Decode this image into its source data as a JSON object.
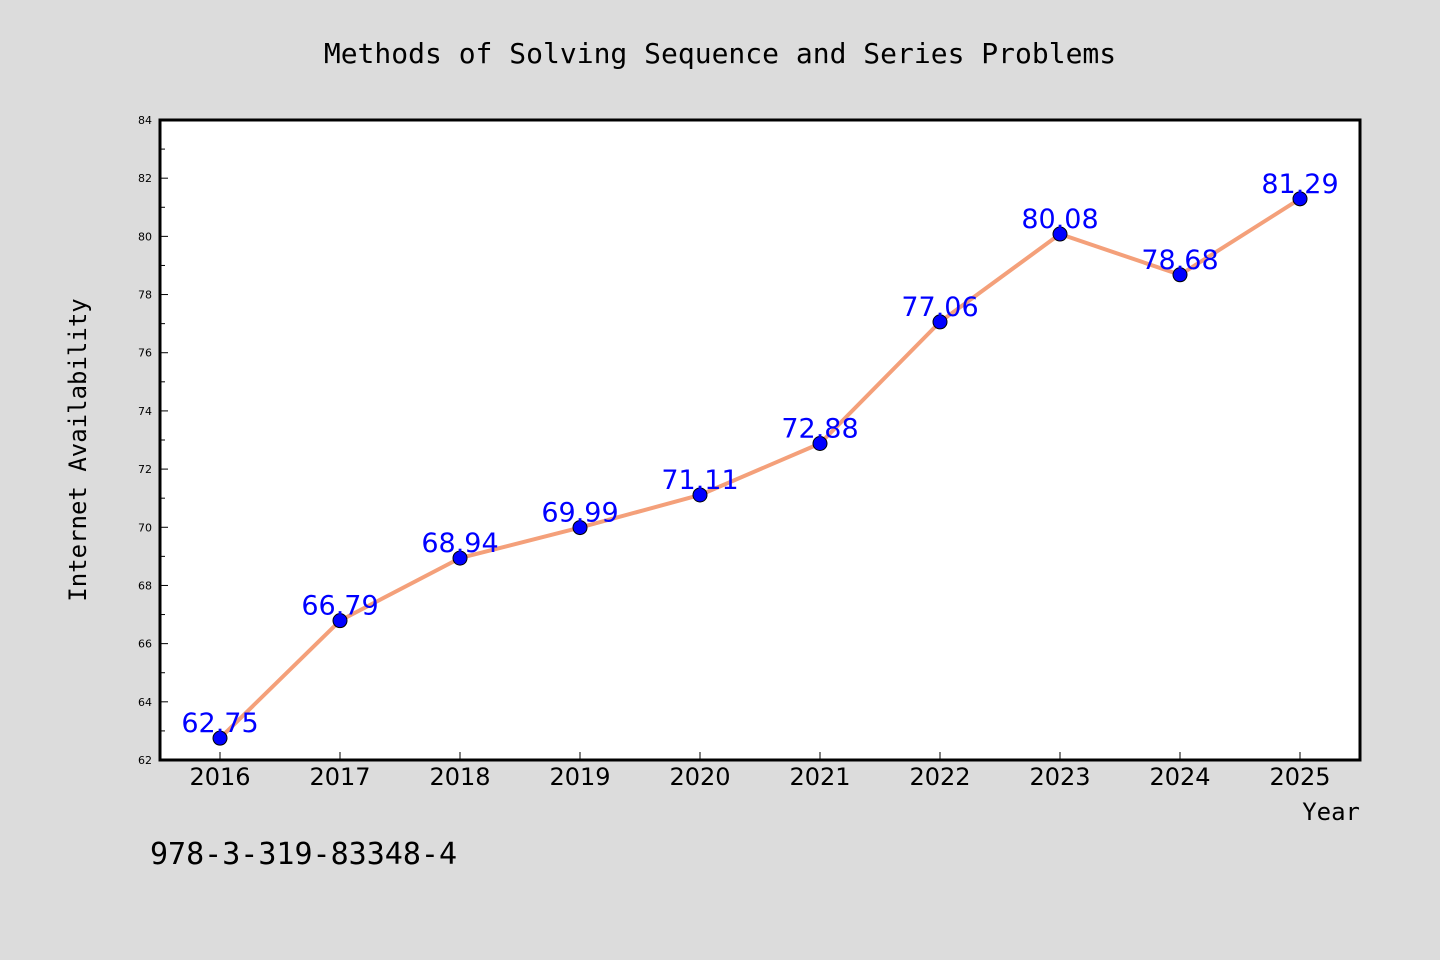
{
  "chart_data": {
    "type": "line",
    "title": "Methods of Solving Sequence and Series Problems",
    "xlabel": "Year",
    "ylabel": "Internet Availability",
    "categories": [
      "2016",
      "2017",
      "2018",
      "2019",
      "2020",
      "2021",
      "2022",
      "2023",
      "2024",
      "2025"
    ],
    "series": [
      {
        "values": [
          62.75,
          66.79,
          68.94,
          69.99,
          71.11,
          72.88,
          77.06,
          80.08,
          78.68,
          81.29
        ],
        "data_labels": [
          "62.75",
          "66.79",
          "68.94",
          "69.99",
          "71.11",
          "72.88",
          "77.06",
          "80.08",
          "78.68",
          "81.29"
        ]
      }
    ],
    "ylim": [
      62,
      84
    ],
    "yticks": [
      "62",
      "64",
      "66",
      "68",
      "70",
      "72",
      "74",
      "76",
      "78",
      "80",
      "82",
      "84"
    ],
    "grid": false,
    "legend": "none",
    "annotation": "978-3-319-83348-4",
    "colors": {
      "line": "#f4a07a",
      "marker": "#0000ff",
      "data_label": "#0000ff",
      "background": "#dcdcdc",
      "plot_background": "#ffffff"
    }
  }
}
